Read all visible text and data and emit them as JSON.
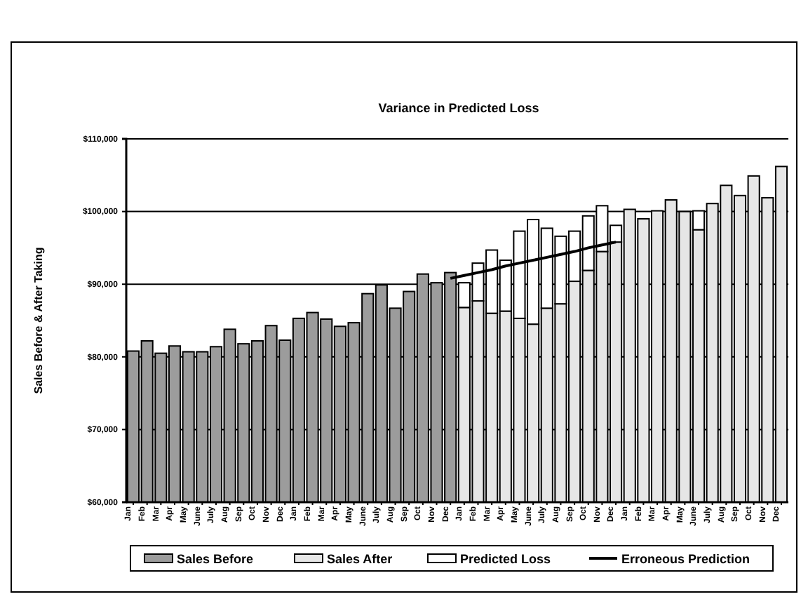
{
  "chart_data": {
    "type": "bar",
    "subtitle": "Variance in Predicted Loss",
    "ylabel": "Sales Before & After Taking",
    "categories": [
      "Jan",
      "Feb",
      "Mar",
      "Apr",
      "May",
      "June",
      "July",
      "Aug",
      "Sep",
      "Oct",
      "Nov",
      "Dec",
      "Jan",
      "Feb",
      "Mar",
      "Apr",
      "May",
      "June",
      "July",
      "Aug",
      "Sep",
      "Oct",
      "Nov",
      "Dec",
      "Jan",
      "Feb",
      "Mar",
      "Apr",
      "May",
      "June",
      "July",
      "Aug",
      "Sep",
      "Oct",
      "Nov",
      "Dec",
      "Jan",
      "Feb",
      "Mar",
      "Apr",
      "May",
      "June",
      "July",
      "Aug",
      "Sep",
      "Oct",
      "Nov",
      "Dec"
    ],
    "series": [
      {
        "name": "Sales Before",
        "color": "#9c9c9c",
        "values": [
          80800,
          82200,
          80500,
          81500,
          80700,
          80700,
          81400,
          83800,
          81800,
          82200,
          84300,
          82300,
          85300,
          86100,
          85200,
          84200,
          84700,
          88700,
          89900,
          86700,
          89000,
          91400,
          90200,
          91600,
          null,
          null,
          null,
          null,
          null,
          null,
          null,
          null,
          null,
          null,
          null,
          null,
          null,
          null,
          null,
          null,
          null,
          null,
          null,
          null,
          null,
          null,
          null,
          null
        ]
      },
      {
        "name": "Sales After",
        "color": "#e6e6e6",
        "values": [
          null,
          null,
          null,
          null,
          null,
          null,
          null,
          null,
          null,
          null,
          null,
          null,
          null,
          null,
          null,
          null,
          null,
          null,
          null,
          null,
          null,
          null,
          null,
          null,
          86800,
          87700,
          86000,
          86300,
          85300,
          84500,
          86700,
          87300,
          90400,
          91900,
          94500,
          95800,
          100300,
          99000,
          100100,
          101600,
          100000,
          97500,
          101100,
          103600,
          102200,
          104900,
          101900,
          106200
        ]
      },
      {
        "name": "Predicted Loss",
        "color": "#ffffff",
        "base": [
          null,
          null,
          null,
          null,
          null,
          null,
          null,
          null,
          null,
          null,
          null,
          null,
          null,
          null,
          null,
          null,
          null,
          null,
          null,
          null,
          null,
          null,
          null,
          null,
          86800,
          87700,
          86000,
          86300,
          85300,
          84500,
          86700,
          87300,
          90400,
          91900,
          94500,
          95800,
          null,
          null,
          null,
          null,
          null,
          97500,
          null,
          null,
          null,
          null,
          null,
          null
        ],
        "values": [
          null,
          null,
          null,
          null,
          null,
          null,
          null,
          null,
          null,
          null,
          null,
          null,
          null,
          null,
          null,
          null,
          null,
          null,
          null,
          null,
          null,
          null,
          null,
          null,
          3400,
          5200,
          8700,
          7000,
          12000,
          14400,
          11000,
          9300,
          6900,
          7500,
          6300,
          2300,
          null,
          null,
          null,
          null,
          null,
          2600,
          null,
          null,
          null,
          null,
          null,
          null
        ]
      },
      {
        "name": "Erroneous Prediction",
        "type": "line",
        "color": "#000000",
        "values": [
          null,
          null,
          null,
          null,
          null,
          null,
          null,
          null,
          null,
          null,
          null,
          null,
          null,
          null,
          null,
          null,
          null,
          null,
          null,
          null,
          null,
          null,
          null,
          90800,
          91200,
          91600,
          92000,
          92500,
          92900,
          93300,
          93700,
          94100,
          94500,
          95000,
          95400,
          95800,
          null,
          null,
          null,
          null,
          null,
          null,
          null,
          null,
          null,
          null,
          null,
          null
        ]
      }
    ],
    "ylim": [
      60000,
      110000
    ],
    "yticks": [
      {
        "value": 60000,
        "label": "$60,000"
      },
      {
        "value": 70000,
        "label": "$70,000"
      },
      {
        "value": 80000,
        "label": "$80,000"
      },
      {
        "value": 90000,
        "label": "$90,000"
      },
      {
        "value": 100000,
        "label": "$100,000"
      },
      {
        "value": 110000,
        "label": "$110,000"
      }
    ],
    "grid": "y",
    "legend": "bottom",
    "line_style": "solid",
    "marker": "none"
  }
}
